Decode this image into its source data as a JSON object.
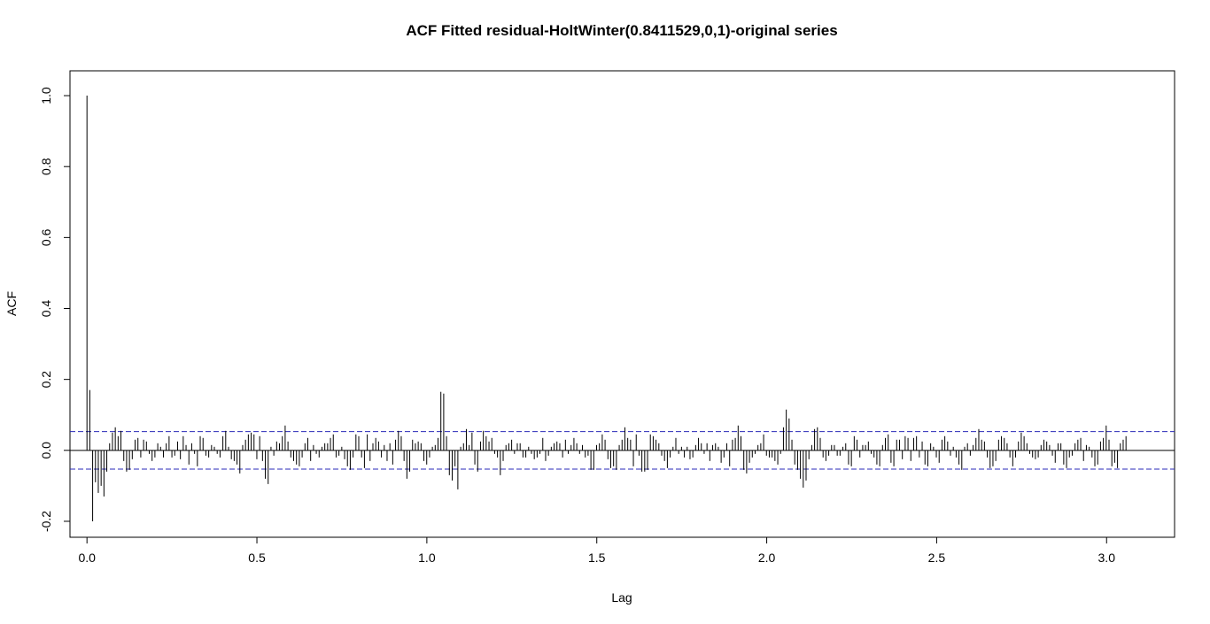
{
  "chart_data": {
    "type": "bar",
    "title": "ACF Fitted residual-HoltWinter(0.8411529,0,1)-original series",
    "xlabel": "Lag",
    "ylabel": "ACF",
    "xlim": [
      -0.05,
      3.2
    ],
    "ylim": [
      -0.245,
      1.07
    ],
    "x_ticks": [
      0.0,
      0.5,
      1.0,
      1.5,
      2.0,
      2.5,
      3.0
    ],
    "x_tick_labels": [
      "0.0",
      "0.5",
      "1.0",
      "1.5",
      "2.0",
      "2.5",
      "3.0"
    ],
    "y_ticks": [
      -0.2,
      0.0,
      0.2,
      0.4,
      0.6,
      0.8,
      1.0
    ],
    "y_tick_labels": [
      "-0.2",
      "0.0",
      "0.2",
      "0.4",
      "0.6",
      "0.8",
      "1.0"
    ],
    "confidence_bound": 0.053,
    "lag_step": 0.00833,
    "acf": [
      1.0,
      0.17,
      -0.2,
      -0.09,
      -0.12,
      -0.1,
      -0.13,
      -0.06,
      0.02,
      0.05,
      0.065,
      0.04,
      0.055,
      -0.03,
      -0.06,
      -0.055,
      -0.025,
      0.03,
      0.035,
      -0.02,
      0.03,
      0.025,
      -0.01,
      -0.03,
      -0.02,
      0.02,
      0.01,
      -0.02,
      0.02,
      0.04,
      -0.02,
      -0.015,
      0.025,
      -0.025,
      0.04,
      0.015,
      -0.04,
      0.02,
      -0.01,
      -0.045,
      0.04,
      0.035,
      -0.015,
      -0.02,
      0.015,
      0.01,
      -0.01,
      -0.02,
      0.04,
      0.055,
      0.01,
      -0.025,
      -0.03,
      -0.04,
      -0.065,
      0.015,
      0.03,
      0.045,
      0.05,
      0.045,
      -0.025,
      0.04,
      -0.03,
      -0.08,
      -0.095,
      0.01,
      -0.015,
      0.025,
      0.02,
      0.04,
      0.07,
      0.025,
      -0.02,
      -0.03,
      -0.04,
      -0.045,
      -0.02,
      0.02,
      0.035,
      -0.03,
      0.015,
      -0.01,
      -0.02,
      0.01,
      0.02,
      0.02,
      0.035,
      0.045,
      -0.02,
      -0.015,
      0.01,
      -0.025,
      -0.045,
      -0.055,
      -0.02,
      0.045,
      0.04,
      -0.02,
      -0.05,
      0.045,
      -0.03,
      0.02,
      0.035,
      0.025,
      -0.02,
      0.015,
      -0.03,
      0.02,
      -0.04,
      0.03,
      0.055,
      0.04,
      -0.03,
      -0.08,
      -0.06,
      0.03,
      0.02,
      0.025,
      0.02,
      -0.03,
      -0.04,
      -0.02,
      0.01,
      0.015,
      0.035,
      0.165,
      0.16,
      0.04,
      -0.07,
      -0.085,
      -0.045,
      -0.11,
      0.01,
      0.02,
      0.06,
      0.015,
      0.05,
      -0.04,
      -0.06,
      0.025,
      0.055,
      0.04,
      0.025,
      0.035,
      -0.01,
      -0.02,
      -0.07,
      -0.03,
      0.015,
      0.02,
      0.03,
      -0.01,
      0.02,
      0.02,
      -0.02,
      -0.02,
      0.01,
      -0.01,
      -0.025,
      -0.02,
      -0.01,
      0.035,
      -0.03,
      -0.015,
      0.01,
      0.02,
      0.025,
      0.02,
      -0.02,
      0.03,
      -0.01,
      0.015,
      0.035,
      0.02,
      -0.01,
      0.015,
      -0.02,
      -0.015,
      -0.055,
      -0.055,
      0.015,
      0.02,
      0.045,
      0.03,
      -0.025,
      -0.05,
      -0.045,
      -0.055,
      0.015,
      0.03,
      0.065,
      0.035,
      0.03,
      -0.045,
      0.045,
      -0.015,
      -0.06,
      -0.06,
      -0.055,
      0.045,
      0.04,
      0.03,
      0.02,
      -0.015,
      -0.03,
      -0.05,
      -0.02,
      0.01,
      0.035,
      -0.01,
      0.01,
      -0.02,
      0.01,
      -0.025,
      -0.02,
      0.015,
      0.035,
      0.02,
      -0.01,
      0.02,
      -0.03,
      0.015,
      0.02,
      0.01,
      -0.035,
      -0.02,
      0.02,
      -0.045,
      0.03,
      0.035,
      0.07,
      0.04,
      -0.055,
      -0.065,
      -0.035,
      -0.02,
      -0.01,
      0.015,
      0.02,
      0.045,
      -0.015,
      -0.02,
      -0.02,
      -0.03,
      -0.04,
      -0.01,
      0.065,
      0.115,
      0.09,
      0.03,
      -0.04,
      -0.055,
      -0.08,
      -0.105,
      -0.085,
      -0.025,
      0.015,
      0.06,
      0.065,
      0.035,
      -0.02,
      -0.03,
      -0.015,
      0.015,
      0.015,
      -0.015,
      -0.015,
      0.01,
      0.02,
      -0.04,
      -0.045,
      0.04,
      0.03,
      -0.02,
      0.015,
      0.015,
      0.025,
      -0.01,
      -0.02,
      -0.04,
      -0.045,
      0.015,
      0.035,
      0.045,
      -0.035,
      -0.045,
      0.03,
      0.03,
      -0.025,
      0.04,
      0.035,
      -0.03,
      0.035,
      0.04,
      -0.02,
      0.025,
      -0.04,
      -0.045,
      0.02,
      0.01,
      -0.02,
      -0.035,
      0.03,
      0.04,
      0.025,
      -0.015,
      0.01,
      -0.02,
      -0.04,
      -0.055,
      0.01,
      0.02,
      -0.015,
      0.015,
      0.035,
      0.06,
      0.03,
      0.025,
      -0.02,
      -0.05,
      -0.045,
      -0.03,
      0.03,
      0.04,
      0.035,
      0.02,
      -0.02,
      -0.045,
      -0.02,
      0.025,
      0.05,
      0.04,
      0.02,
      -0.01,
      -0.02,
      -0.025,
      -0.02,
      0.015,
      0.03,
      0.025,
      0.015,
      -0.015,
      -0.035,
      0.02,
      0.02,
      -0.04,
      -0.05,
      -0.02,
      -0.015,
      0.02,
      0.03,
      0.035,
      -0.03,
      0.015,
      0.01,
      -0.02,
      -0.045,
      -0.04,
      0.025,
      0.035,
      0.07,
      0.03,
      -0.045,
      -0.035,
      -0.05,
      0.02,
      0.03,
      0.04
    ]
  }
}
